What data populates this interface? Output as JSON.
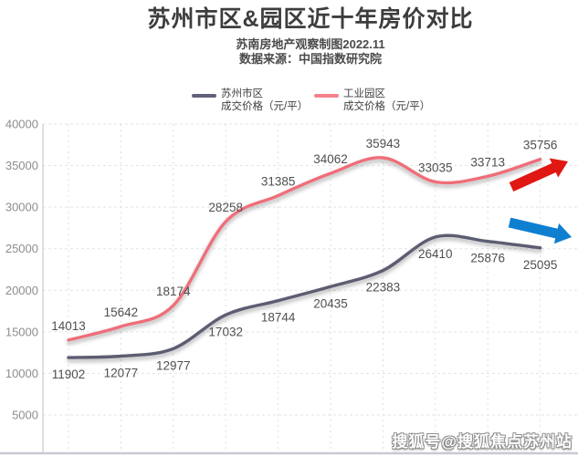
{
  "header": {
    "title": "苏州市区&园区近十年房价对比",
    "subtitle1": "苏南房地产观察制图2022.11",
    "subtitle2": "数据来源：中国指数研究院"
  },
  "legend": [
    {
      "label": "苏州市区",
      "sublabel": "成交价格（元/平）",
      "color": "#60607a"
    },
    {
      "label": "工业园区",
      "sublabel": "成交价格（元/平）",
      "color": "#f4828c"
    }
  ],
  "watermark": "搜狐号@搜狐焦点苏州站",
  "chart_data": {
    "type": "line",
    "title": "苏州市区&园区近十年房价对比",
    "x_axis": {
      "ticklabels_visible": false,
      "n_points": 10
    },
    "series": [
      {
        "name": "苏州市区 成交价格（元/平）",
        "color": "#5c5c72",
        "label_position": "below",
        "values": [
          11902,
          12077,
          12977,
          17032,
          18744,
          20435,
          22383,
          26410,
          25876,
          25095
        ]
      },
      {
        "name": "工业园区 成交价格（元/平）",
        "color": "#ee6e7a",
        "label_position": "above",
        "values": [
          14013,
          15642,
          18174,
          28258,
          31385,
          34062,
          35943,
          33035,
          33713,
          35756
        ]
      }
    ],
    "ylim": [
      5000,
      40000
    ],
    "yticks": [
      40000,
      35000,
      30000,
      25000,
      20000,
      15000,
      10000,
      5000
    ],
    "grid": "dashed",
    "legend_position": "top",
    "annotations": [
      {
        "type": "arrow",
        "name": "park-up-trend-arrow",
        "direction": "up-right",
        "color": "#e01713"
      },
      {
        "type": "arrow",
        "name": "city-down-trend-arrow",
        "direction": "down-right",
        "color": "#0f7fd0"
      }
    ]
  }
}
